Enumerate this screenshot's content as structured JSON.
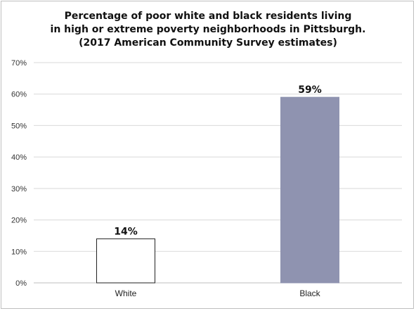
{
  "chart_data": {
    "type": "bar",
    "title_lines": [
      "Percentage of poor white and black residents living",
      "in high or extreme poverty neighborhoods in Pittsburgh.",
      "(2017 American Community Survey estimates)"
    ],
    "categories": [
      "White",
      "Black"
    ],
    "values": [
      14,
      59
    ],
    "data_labels": [
      "14%",
      "59%"
    ],
    "ylim": [
      0,
      70
    ],
    "yticks": [
      0,
      10,
      20,
      30,
      40,
      50,
      60,
      70
    ],
    "ytick_labels": [
      "0%",
      "10%",
      "20%",
      "30%",
      "40%",
      "50%",
      "60%",
      "70%"
    ],
    "grid": true,
    "legend": "none",
    "bar_colors": [
      "#ffffff",
      "#8f93b0"
    ],
    "bar_edge_colors": [
      "#222222",
      "#8f93b0"
    ],
    "gridline_color": "#d9d9d9"
  }
}
